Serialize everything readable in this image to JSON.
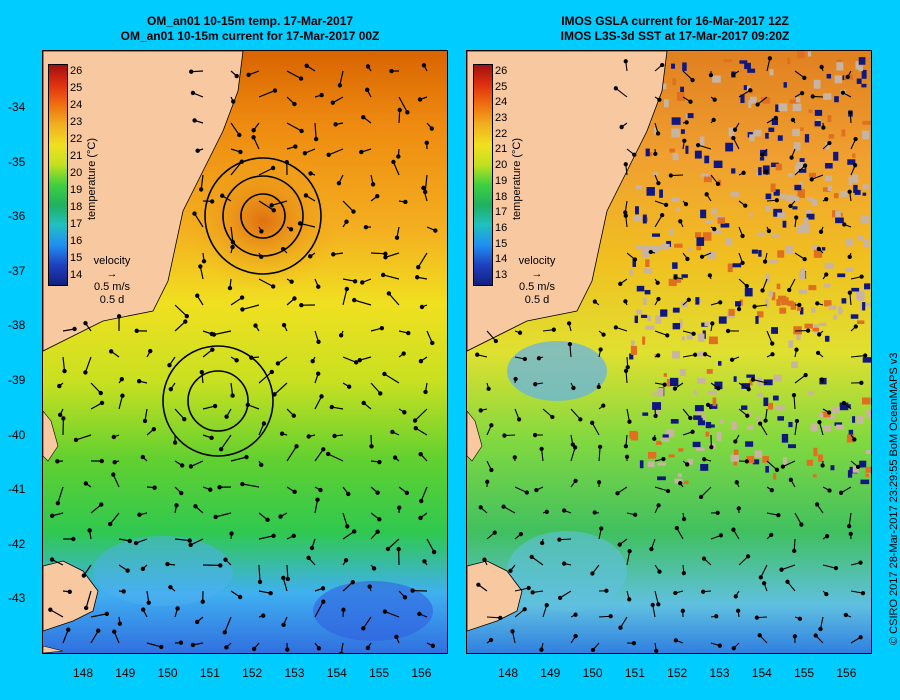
{
  "left_panel": {
    "title_line1": "OM_an01 10-15m temp. 17-Mar-2017",
    "title_line2": "OM_an01 10-15m current for 17-Mar-2017 00Z",
    "colorbar_ticks": [
      "26",
      "25",
      "24",
      "23",
      "22",
      "21",
      "20",
      "19",
      "18",
      "17",
      "16",
      "15",
      "14"
    ],
    "colorbar_label": "temperature (°C)",
    "velocity_label": "velocity",
    "velocity_scale": "0.5 m/s",
    "velocity_time": "0.5 d"
  },
  "right_panel": {
    "title_line1": "IMOS GSLA current for 16-Mar-2017 12Z",
    "title_line2": "IMOS L3S-3d SST at 17-Mar-2017 09:20Z",
    "colorbar_ticks": [
      "26",
      "25",
      "24",
      "23",
      "22",
      "21",
      "20",
      "19",
      "18",
      "17",
      "16",
      "15",
      "14",
      "13"
    ],
    "colorbar_label": "temperature (°C)",
    "velocity_label": "velocity",
    "velocity_scale": "0.5 m/s",
    "velocity_time": "0.5 d"
  },
  "lat_labels": [
    "-34",
    "-35",
    "-36",
    "-37",
    "-38",
    "-39",
    "-40",
    "-41",
    "-42",
    "-43"
  ],
  "lon_labels": [
    "148",
    "149",
    "150",
    "151",
    "152",
    "153",
    "154",
    "155",
    "156"
  ],
  "credit": "© CSIRO 2017   28-Mar-2017 23:29:55 BoM OceanMAPS v3",
  "colors": {
    "background": "#00ccff",
    "land": "#f8c8a0",
    "warm": "#e87800",
    "mid": "#f0d000",
    "cool": "#30c030",
    "cold": "#2060ff",
    "missing": "#c8b4a0"
  }
}
